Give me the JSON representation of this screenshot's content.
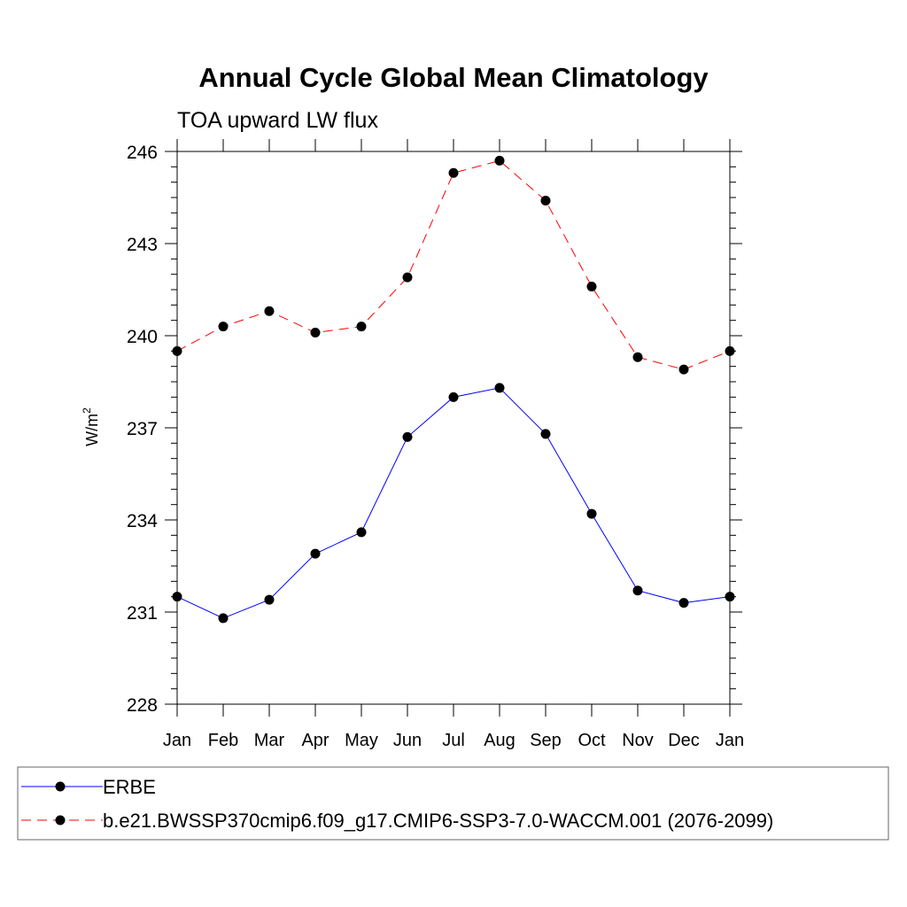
{
  "chart_data": {
    "type": "line",
    "title": "Annual Cycle Global Mean Climatology",
    "subtitle": "TOA upward LW flux",
    "xlabel": "",
    "ylabel": "W/m",
    "ylabel_superscript": "2",
    "categories": [
      "Jan",
      "Feb",
      "Mar",
      "Apr",
      "May",
      "Jun",
      "Jul",
      "Aug",
      "Sep",
      "Oct",
      "Nov",
      "Dec",
      "Jan"
    ],
    "ylim": [
      228,
      246
    ],
    "yticks": [
      228,
      231,
      234,
      237,
      240,
      243,
      246
    ],
    "y_minor_step": 0.5,
    "series": [
      {
        "name": "ERBE",
        "color": "#0000ff",
        "dash": "solid",
        "values": [
          231.5,
          230.8,
          231.4,
          232.9,
          233.6,
          236.7,
          238.0,
          238.3,
          236.8,
          234.2,
          231.7,
          231.3,
          231.5
        ]
      },
      {
        "name": "b.e21.BWSSP370cmip6.f09_g17.CMIP6-SSP3-7.0-WACCM.001 (2076-2099)",
        "color": "#ff0000",
        "dash": "dashed",
        "values": [
          239.5,
          240.3,
          240.8,
          240.1,
          240.3,
          241.9,
          245.3,
          245.7,
          244.4,
          241.6,
          239.3,
          238.9,
          239.5
        ]
      }
    ],
    "grid": false,
    "legend_position": "bottom"
  }
}
